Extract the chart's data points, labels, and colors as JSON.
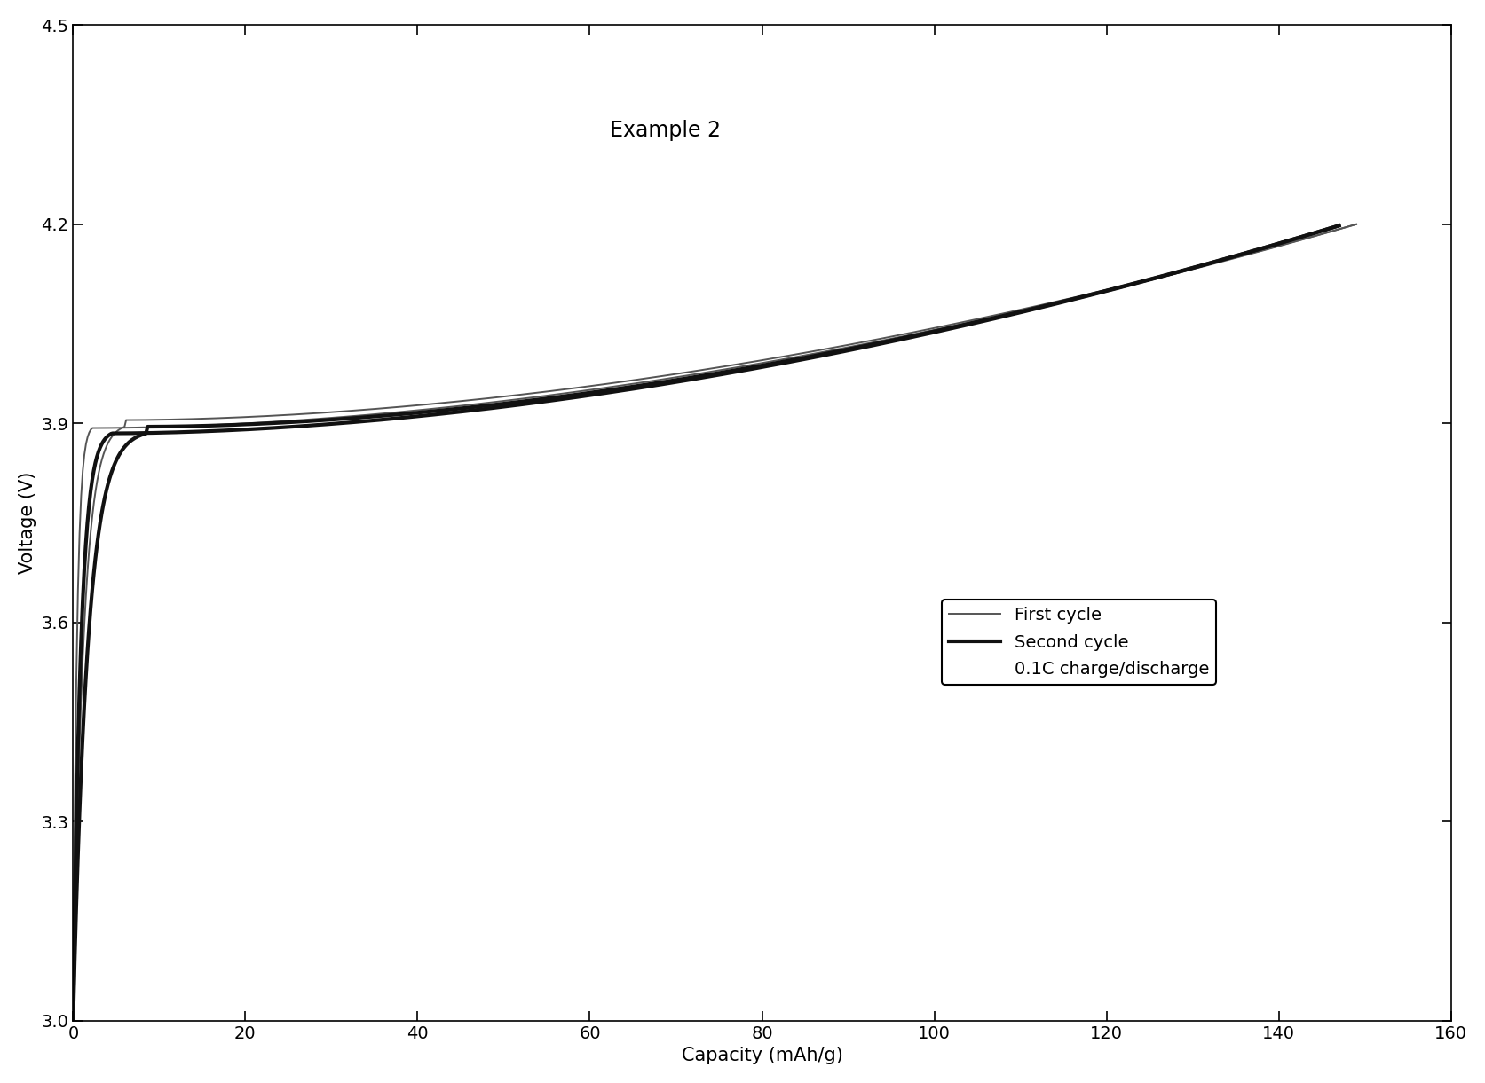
{
  "title": "Example 2",
  "xlabel": "Capacity (mAh/g)",
  "ylabel": "Voltage (V)",
  "xlim": [
    0,
    160
  ],
  "ylim": [
    3.0,
    4.5
  ],
  "xticks": [
    0,
    20,
    40,
    60,
    80,
    100,
    120,
    140,
    160
  ],
  "yticks": [
    3.0,
    3.3,
    3.6,
    3.9,
    4.2,
    4.5
  ],
  "legend_label_first": "First cycle",
  "legend_label_second": "Second cycle",
  "legend_note": "0.1C charge/discharge",
  "background_color": "#ffffff",
  "line_color_first": "#555555",
  "line_color_second": "#111111",
  "lw_first": 1.4,
  "lw_second": 3.0,
  "title_fontsize": 17,
  "axis_fontsize": 15,
  "tick_fontsize": 14,
  "legend_fontsize": 14
}
